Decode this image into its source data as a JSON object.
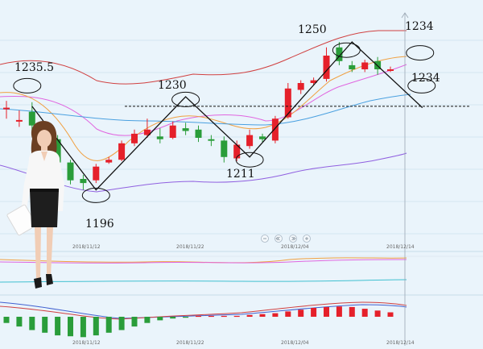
{
  "chart_data": {
    "type": "candlestick",
    "x_dates": [
      "2018/11/12",
      "2018/11/22",
      "2018/12/04",
      "2018/12/14"
    ],
    "candles": [
      {
        "open": 1226.0,
        "close": 1226.0,
        "high": 1228.5,
        "low": 1222.0
      },
      {
        "open": 1221.5,
        "close": 1221.5,
        "high": 1225.0,
        "low": 1219.0
      },
      {
        "open": 1224.5,
        "close": 1219.5,
        "high": 1228.0,
        "low": 1216.0
      },
      {
        "open": 1218.0,
        "close": 1216.0,
        "high": 1221.0,
        "low": 1214.0
      },
      {
        "open": 1214.5,
        "close": 1206.0,
        "high": 1216.0,
        "low": 1204.0
      },
      {
        "open": 1206.0,
        "close": 1199.5,
        "high": 1207.0,
        "low": 1198.0
      },
      {
        "open": 1200.0,
        "close": 1198.5,
        "high": 1201.5,
        "low": 1196.0
      },
      {
        "open": 1199.5,
        "close": 1204.5,
        "high": 1205.5,
        "low": 1198.5
      },
      {
        "open": 1206.0,
        "close": 1207.0,
        "high": 1208.0,
        "low": 1205.5
      },
      {
        "open": 1207.0,
        "close": 1213.0,
        "high": 1214.0,
        "low": 1206.5
      },
      {
        "open": 1213.0,
        "close": 1216.5,
        "high": 1218.0,
        "low": 1212.0
      },
      {
        "open": 1216.0,
        "close": 1218.0,
        "high": 1222.0,
        "low": 1215.0
      },
      {
        "open": 1215.5,
        "close": 1214.5,
        "high": 1218.5,
        "low": 1213.0
      },
      {
        "open": 1215.0,
        "close": 1219.5,
        "high": 1221.0,
        "low": 1214.5
      },
      {
        "open": 1218.5,
        "close": 1217.5,
        "high": 1220.5,
        "low": 1216.0
      },
      {
        "open": 1218.0,
        "close": 1215.0,
        "high": 1219.5,
        "low": 1213.5
      },
      {
        "open": 1214.5,
        "close": 1214.0,
        "high": 1216.0,
        "low": 1212.0
      },
      {
        "open": 1214.0,
        "close": 1208.0,
        "high": 1215.5,
        "low": 1206.0
      },
      {
        "open": 1207.5,
        "close": 1212.5,
        "high": 1214.0,
        "low": 1206.5
      },
      {
        "open": 1212.0,
        "close": 1216.0,
        "high": 1218.0,
        "low": 1211.0
      },
      {
        "open": 1215.5,
        "close": 1214.5,
        "high": 1216.5,
        "low": 1213.5
      },
      {
        "open": 1214.0,
        "close": 1222.0,
        "high": 1223.0,
        "low": 1213.0
      },
      {
        "open": 1222.5,
        "close": 1233.0,
        "high": 1235.0,
        "low": 1222.0
      },
      {
        "open": 1232.5,
        "close": 1235.0,
        "high": 1236.0,
        "low": 1231.0
      },
      {
        "open": 1235.0,
        "close": 1236.0,
        "high": 1237.0,
        "low": 1234.0
      },
      {
        "open": 1236.5,
        "close": 1245.0,
        "high": 1248.0,
        "low": 1235.5
      },
      {
        "open": 1248.0,
        "close": 1243.0,
        "high": 1250.0,
        "low": 1241.5
      },
      {
        "open": 1241.5,
        "close": 1240.0,
        "high": 1243.0,
        "low": 1239.0
      },
      {
        "open": 1240.0,
        "close": 1242.5,
        "high": 1243.5,
        "low": 1239.0
      },
      {
        "open": 1243.0,
        "close": 1240.0,
        "high": 1244.5,
        "low": 1238.0
      },
      {
        "open": 1240.0,
        "close": 1240.0,
        "high": 1241.0,
        "low": 1239.0
      }
    ],
    "annotations": [
      {
        "label": "1235.5",
        "index": 2,
        "price": 1235.5
      },
      {
        "label": "1196",
        "index": 6,
        "price": 1196
      },
      {
        "label": "1230",
        "index": 12,
        "price": 1230
      },
      {
        "label": "1211",
        "index": 17,
        "price": 1211
      },
      {
        "label": "1250",
        "index": 26,
        "price": 1250
      },
      {
        "label": "1234",
        "index": 30,
        "price": 1234
      },
      {
        "label": "1234",
        "index": 30,
        "price": 1234
      }
    ],
    "path_prices": [
      1226.5,
      1196,
      1230,
      1208,
      1250,
      1226
    ],
    "dashed_level": 1226.5,
    "macd": [
      -3.5,
      -5.5,
      -7.5,
      -9.0,
      -10.5,
      -11.0,
      -11.5,
      -10.5,
      -9.0,
      -7.5,
      -5.5,
      -3.5,
      -2.0,
      -1.0,
      -0.5,
      0.5,
      0.5,
      0.5,
      0.5,
      1.0,
      1.5,
      2.0,
      3.0,
      4.0,
      5.0,
      5.5,
      5.8,
      5.5,
      4.5,
      3.5,
      2.5
    ],
    "colors": {
      "up": "#e5202a",
      "down": "#2a9d3a",
      "ma_pink": "#e066e0",
      "ma_orange": "#f0a040",
      "ma_blue": "#4aa0e0",
      "band": "#d04040",
      "band_low": "#9060e0"
    }
  }
}
